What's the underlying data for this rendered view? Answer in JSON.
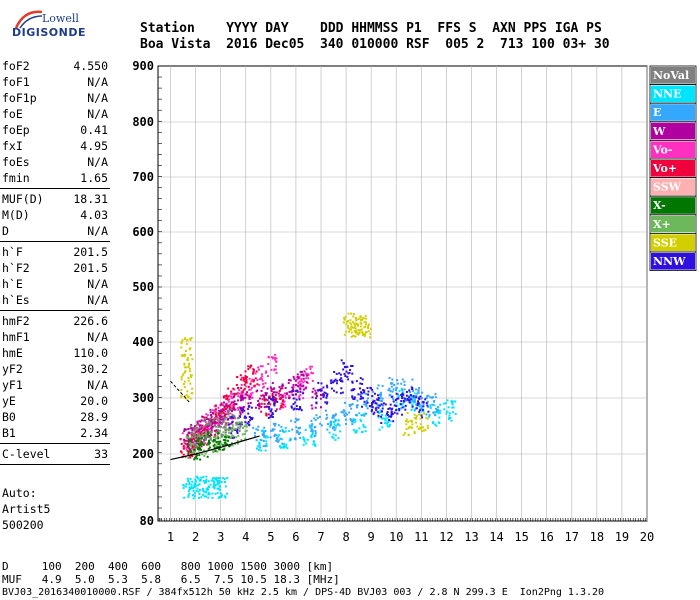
{
  "logo": {
    "line1": "Lowell",
    "line2": "DIGISONDE"
  },
  "header": {
    "line1": "Station    YYYY DAY    DDD HHMMSS P1  FFS S  AXN PPS IGA PS",
    "line2": "Boa Vista  2016 Dec05  340 010000 RSF  005 2  713 100 03+ 30"
  },
  "params": {
    "group1": [
      {
        "name": "foF2",
        "value": "4.550"
      },
      {
        "name": "foF1",
        "value": "N/A"
      },
      {
        "name": "foF1p",
        "value": "N/A"
      },
      {
        "name": "foE",
        "value": "N/A"
      },
      {
        "name": "foEp",
        "value": "0.41"
      },
      {
        "name": "fxI",
        "value": "4.95"
      },
      {
        "name": "foEs",
        "value": "N/A"
      },
      {
        "name": "fmin",
        "value": "1.65"
      }
    ],
    "group2": [
      {
        "name": "MUF(D)",
        "value": "18.31"
      },
      {
        "name": "M(D)",
        "value": "4.03"
      },
      {
        "name": "D",
        "value": "N/A"
      }
    ],
    "group3": [
      {
        "name": "h`F",
        "value": "201.5"
      },
      {
        "name": "h`F2",
        "value": "201.5"
      },
      {
        "name": "h`E",
        "value": "N/A"
      },
      {
        "name": "h`Es",
        "value": "N/A"
      }
    ],
    "group4": [
      {
        "name": "hmF2",
        "value": "226.6"
      },
      {
        "name": "hmF1",
        "value": "N/A"
      },
      {
        "name": "hmE",
        "value": "110.0"
      },
      {
        "name": "yF2",
        "value": "30.2"
      },
      {
        "name": "yF1",
        "value": "N/A"
      },
      {
        "name": "yE",
        "value": "20.0"
      },
      {
        "name": "B0",
        "value": "28.9"
      },
      {
        "name": "B1",
        "value": "2.34"
      }
    ],
    "group5": [
      {
        "name": "C-level",
        "value": "33"
      }
    ]
  },
  "auto": {
    "label": "Auto:",
    "artist": "Artist5",
    "version": "500200"
  },
  "footer": {
    "d_line": "D     100  200  400  600   800 1000 1500 3000 [km]",
    "muf_line": "MUF   4.9  5.0  5.3  5.8   6.5  7.5 10.5 18.3 [MHz]",
    "file_line": "BVJ03_2016340010000.RSF / 384fx512h 50 kHz 2.5 km / DPS-4D BVJ03 003 / 2.8 N 299.3 E  Ion2Png 1.3.20"
  },
  "colors": {
    "background": "#ffffff",
    "grid": "#b4b4b4",
    "legend_border": "#000000"
  },
  "chart_data": {
    "type": "scatter",
    "title": "",
    "xlabel": "",
    "ylabel": "",
    "xlim": [
      0.5,
      20
    ],
    "ylim": [
      80,
      900
    ],
    "x_ticks": [
      1,
      2,
      3,
      4,
      5,
      6,
      7,
      8,
      9,
      10,
      11,
      12,
      13,
      14,
      15,
      16,
      17,
      18,
      19,
      20
    ],
    "y_ticks": [
      80,
      200,
      300,
      400,
      500,
      600,
      700,
      800,
      900
    ],
    "grid": true,
    "legend_position": "right",
    "legend": [
      {
        "name": "NoVal",
        "color": "#808080"
      },
      {
        "name": "NNE",
        "color": "#00e4ff"
      },
      {
        "name": "E",
        "color": "#34a8ff"
      },
      {
        "name": "W",
        "color": "#b000a0"
      },
      {
        "name": "Vo-",
        "color": "#ff30c0"
      },
      {
        "name": "Vo+",
        "color": "#f0003c"
      },
      {
        "name": "SSW",
        "color": "#ffb0b0"
      },
      {
        "name": "X-",
        "color": "#007800"
      },
      {
        "name": "X+",
        "color": "#6cb85a"
      },
      {
        "name": "SSE",
        "color": "#d2cf00"
      },
      {
        "name": "NNW",
        "color": "#3010e0"
      }
    ],
    "series": [
      {
        "name": "Vo-",
        "color": "#ff30c0",
        "x": [
          1.7,
          1.9,
          2.1,
          2.3,
          2.6,
          2.9,
          3.2,
          3.6,
          4.0,
          4.5,
          5.0,
          5.5,
          6.0,
          6.4
        ],
        "y": [
          222,
          226,
          232,
          244,
          262,
          270,
          290,
          300,
          320,
          340,
          360,
          300,
          320,
          340
        ]
      },
      {
        "name": "Vo+",
        "color": "#f0003c",
        "x": [
          1.6,
          1.8,
          2.0,
          2.2,
          2.5,
          2.8,
          3.0,
          3.3,
          3.8,
          4.2,
          4.8,
          5.2
        ],
        "y": [
          215,
          220,
          228,
          238,
          250,
          262,
          275,
          300,
          325,
          340,
          290,
          300
        ]
      },
      {
        "name": "W",
        "color": "#b000a0",
        "x": [
          1.7,
          2.0,
          2.4,
          2.8,
          3.2,
          3.6,
          4.0,
          4.6,
          5.2,
          5.8,
          6.2,
          6.8
        ],
        "y": [
          230,
          240,
          250,
          262,
          275,
          285,
          295,
          300,
          310,
          320,
          330,
          300
        ]
      },
      {
        "name": "NNE",
        "color": "#00e4ff",
        "x": [
          1.7,
          1.9,
          2.2,
          2.5,
          2.8,
          3.0,
          4.6,
          5.5,
          6.5,
          7.5,
          8.5,
          9.5,
          10.2,
          10.8,
          11.5,
          12.1
        ],
        "y": [
          142,
          142,
          143,
          142,
          142,
          143,
          225,
          230,
          235,
          245,
          255,
          265,
          300,
          290,
          270,
          278
        ]
      },
      {
        "name": "E",
        "color": "#34a8ff",
        "x": [
          4.5,
          5.2,
          6.0,
          6.8,
          7.4,
          8.0,
          8.6,
          9.2,
          9.8,
          10.4,
          10.9,
          11.4
        ],
        "y": [
          232,
          240,
          245,
          252,
          262,
          275,
          290,
          305,
          320,
          315,
          300,
          290
        ]
      },
      {
        "name": "NNW",
        "color": "#3010e0",
        "x": [
          3.5,
          4.0,
          5.0,
          6.0,
          7.0,
          7.6,
          8.0,
          8.4,
          8.8,
          9.2,
          9.6,
          10.0,
          10.4,
          11.0
        ],
        "y": [
          250,
          270,
          285,
          300,
          310,
          330,
          350,
          320,
          300,
          290,
          275,
          290,
          300,
          285
        ]
      },
      {
        "name": "SSE",
        "color": "#d2cf00",
        "x": [
          1.6,
          1.6,
          1.6,
          8.1,
          8.3,
          8.5,
          8.7,
          10.5,
          11.0
        ],
        "y": [
          320,
          360,
          390,
          430,
          435,
          432,
          430,
          255,
          255
        ]
      },
      {
        "name": "X+",
        "color": "#6cb85a",
        "x": [
          1.8,
          2.2,
          2.6,
          3.0,
          3.4,
          3.8
        ],
        "y": [
          212,
          218,
          225,
          230,
          235,
          240
        ]
      },
      {
        "name": "X-",
        "color": "#007800",
        "x": [
          1.9,
          2.3,
          2.7,
          3.1
        ],
        "y": [
          210,
          215,
          220,
          228
        ]
      },
      {
        "name": "NoVal",
        "color": "#808080",
        "x": [
          2.0,
          2.5,
          3.0,
          3.5
        ],
        "y": [
          235,
          245,
          255,
          262
        ]
      }
    ],
    "trace": {
      "name": "virtual-height-trace",
      "color": "#000000",
      "x": [
        1.0,
        2.0,
        3.0,
        4.0,
        4.55
      ],
      "y": [
        190,
        200,
        212,
        225,
        232
      ]
    }
  }
}
